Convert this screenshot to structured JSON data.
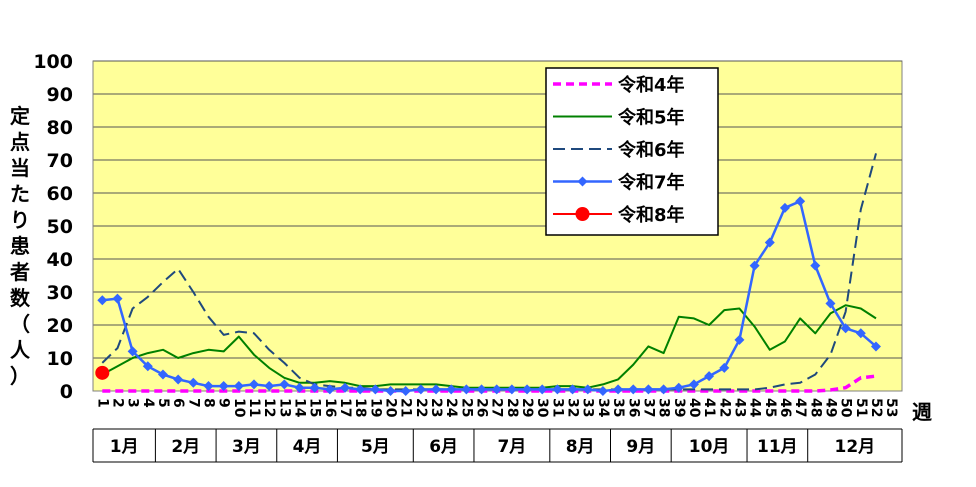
{
  "chart_data": {
    "type": "line",
    "ylabel_chars": [
      "定",
      "点",
      "当",
      "た",
      "り",
      "患",
      "者",
      "数",
      "（",
      "人",
      "）"
    ],
    "xlabel": "週",
    "ylim": [
      0,
      100
    ],
    "y_ticks": [
      0,
      10,
      20,
      30,
      40,
      50,
      60,
      70,
      80,
      90,
      100
    ],
    "x_ticks": [
      1,
      2,
      3,
      4,
      5,
      6,
      7,
      8,
      9,
      10,
      11,
      12,
      13,
      14,
      15,
      16,
      17,
      18,
      19,
      20,
      21,
      22,
      23,
      24,
      25,
      26,
      27,
      28,
      29,
      30,
      31,
      32,
      33,
      34,
      35,
      36,
      37,
      38,
      39,
      40,
      41,
      42,
      43,
      44,
      45,
      46,
      47,
      48,
      49,
      50,
      51,
      52,
      53
    ],
    "months": [
      {
        "label": "1月",
        "start": 1,
        "end": 4.5
      },
      {
        "label": "2月",
        "start": 4.5,
        "end": 8.5
      },
      {
        "label": "3月",
        "start": 8.5,
        "end": 12.5
      },
      {
        "label": "4月",
        "start": 12.5,
        "end": 16.5
      },
      {
        "label": "5月",
        "start": 16.5,
        "end": 21.5
      },
      {
        "label": "6月",
        "start": 21.5,
        "end": 25.5
      },
      {
        "label": "7月",
        "start": 25.5,
        "end": 30.5
      },
      {
        "label": "8月",
        "start": 30.5,
        "end": 34.5
      },
      {
        "label": "9月",
        "start": 34.5,
        "end": 38.5
      },
      {
        "label": "10月",
        "start": 38.5,
        "end": 43.5
      },
      {
        "label": "11月",
        "start": 43.5,
        "end": 47.5
      },
      {
        "label": "12月",
        "start": 47.5,
        "end": 53
      }
    ],
    "grid": true,
    "legend_position": "top-right",
    "plot_background": "#ffff99",
    "series": [
      {
        "name": "令和4年",
        "color": "#ff00ff",
        "style": "dashed-bold",
        "marker": "none",
        "x": [
          1,
          2,
          3,
          4,
          5,
          6,
          7,
          8,
          9,
          10,
          11,
          12,
          13,
          14,
          15,
          16,
          17,
          18,
          19,
          20,
          21,
          22,
          23,
          24,
          25,
          26,
          27,
          28,
          29,
          30,
          31,
          32,
          33,
          34,
          35,
          36,
          37,
          38,
          39,
          40,
          41,
          42,
          43,
          44,
          45,
          46,
          47,
          48,
          49,
          50,
          51,
          52
        ],
        "y": [
          0,
          0,
          0,
          0,
          0,
          0,
          0,
          0,
          0,
          0,
          0,
          0,
          0,
          0,
          0,
          0,
          0,
          0,
          0,
          0,
          0,
          0,
          0,
          0,
          0,
          0,
          0,
          0,
          0,
          0,
          0,
          0,
          0,
          0,
          0,
          0,
          0,
          0,
          0,
          0,
          0,
          0,
          0,
          0,
          0,
          0,
          0,
          0,
          0.3,
          1,
          4,
          4.5
        ]
      },
      {
        "name": "令和5年",
        "color": "#008000",
        "style": "solid",
        "marker": "none",
        "x": [
          1,
          2,
          3,
          4,
          5,
          6,
          7,
          8,
          9,
          10,
          11,
          12,
          13,
          14,
          15,
          16,
          17,
          18,
          19,
          20,
          21,
          22,
          23,
          24,
          25,
          26,
          27,
          28,
          29,
          30,
          31,
          32,
          33,
          34,
          35,
          36,
          37,
          38,
          39,
          40,
          41,
          42,
          43,
          44,
          45,
          46,
          47,
          48,
          49,
          50,
          51,
          52
        ],
        "y": [
          5,
          7.5,
          10,
          11.5,
          12.5,
          10,
          11.5,
          12.5,
          12,
          16.5,
          11,
          7,
          4,
          2.5,
          2.5,
          3,
          2.5,
          1.5,
          1.5,
          2,
          2,
          2,
          2,
          1.5,
          1,
          1,
          1,
          1,
          1,
          1,
          1.5,
          1.5,
          1,
          2,
          3.5,
          8,
          13.5,
          11.5,
          22.5,
          22,
          20,
          24.5,
          25,
          19.5,
          12.5,
          15,
          22,
          17.5,
          23.5,
          26,
          25,
          22
        ]
      },
      {
        "name": "令和6年",
        "color": "#1f497d",
        "style": "dashed",
        "marker": "none",
        "x": [
          1,
          2,
          3,
          4,
          5,
          6,
          7,
          8,
          9,
          10,
          11,
          12,
          13,
          14,
          15,
          16,
          17,
          18,
          19,
          20,
          21,
          22,
          23,
          24,
          25,
          26,
          27,
          28,
          29,
          30,
          31,
          32,
          33,
          34,
          35,
          36,
          37,
          38,
          39,
          40,
          41,
          42,
          43,
          44,
          45,
          46,
          47,
          48,
          49,
          50,
          51,
          52
        ],
        "y": [
          8.5,
          13,
          25,
          28.5,
          33,
          37,
          30,
          22.5,
          17,
          18,
          17.5,
          12.5,
          8.5,
          4,
          2,
          1.5,
          1,
          1,
          0.5,
          0.5,
          0.5,
          0.5,
          0.5,
          0.5,
          0.5,
          0.5,
          0.5,
          0.5,
          0.5,
          0.5,
          0.5,
          0.5,
          0.5,
          0.5,
          0.5,
          0.5,
          0.5,
          0.5,
          0.5,
          0.5,
          0.5,
          0.5,
          0.5,
          0.5,
          1,
          2,
          2.5,
          5,
          11,
          24,
          55,
          72
        ]
      },
      {
        "name": "令和7年",
        "color": "#3366ff",
        "style": "solid",
        "marker": "diamond",
        "x": [
          1,
          2,
          3,
          4,
          5,
          6,
          7,
          8,
          9,
          10,
          11,
          12,
          13,
          14,
          15,
          16,
          17,
          18,
          19,
          20,
          21,
          22,
          23,
          24,
          25,
          26,
          27,
          28,
          29,
          30,
          31,
          32,
          33,
          34,
          35,
          36,
          37,
          38,
          39,
          40,
          41,
          42,
          43,
          44,
          45,
          46,
          47,
          48,
          49,
          50,
          51,
          52
        ],
        "y": [
          27.5,
          28,
          12,
          7.5,
          5,
          3.5,
          2.5,
          1.5,
          1.5,
          1.5,
          2,
          1.5,
          2,
          1,
          1,
          0.5,
          1,
          0.5,
          0.5,
          0,
          0,
          0.5,
          0.5,
          0.5,
          0.5,
          0.5,
          0.5,
          0.5,
          0.5,
          0.5,
          0.5,
          0.5,
          0.5,
          0,
          0.5,
          0.5,
          0.5,
          0.5,
          1,
          2,
          4.5,
          7,
          15.5,
          38,
          45,
          55.5,
          57.5,
          38,
          26.5,
          19,
          17.5,
          13.5
        ]
      },
      {
        "name": "令和8年",
        "color": "#ff0000",
        "style": "solid",
        "marker": "circle",
        "x": [
          1
        ],
        "y": [
          5.5
        ]
      }
    ]
  }
}
